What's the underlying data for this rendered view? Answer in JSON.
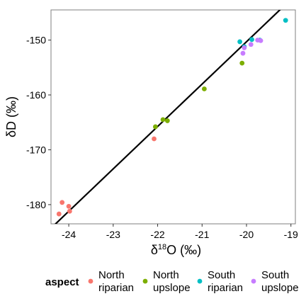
{
  "chart_data": {
    "type": "scatter",
    "xlabel_main": "δ",
    "xlabel_sup": "18",
    "xlabel_rest": "O (‰)",
    "ylabel": "δD (‰)",
    "xlim": [
      -24.4,
      -18.9
    ],
    "ylim": [
      -183.5,
      -144.5
    ],
    "xticks": [
      -24,
      -23,
      -22,
      -21,
      -20,
      -19
    ],
    "yticks": [
      -180,
      -170,
      -160,
      -150
    ],
    "fit_line": {
      "x": [
        -24.4,
        -18.9
      ],
      "y": [
        -184.3,
        -141.8
      ]
    },
    "legend_title": "aspect",
    "series": [
      {
        "name_line1": "North",
        "name_line2": "riparian",
        "color": "#F8766D",
        "points": [
          [
            -24.15,
            -179.6
          ],
          [
            -24.0,
            -180.3
          ],
          [
            -23.98,
            -181.2
          ],
          [
            -24.22,
            -181.7
          ],
          [
            -22.08,
            -168.0
          ]
        ]
      },
      {
        "name_line1": "North",
        "name_line2": "upslope",
        "color": "#7CAE00",
        "points": [
          [
            -22.05,
            -165.8
          ],
          [
            -21.88,
            -164.5
          ],
          [
            -21.78,
            -164.7
          ],
          [
            -20.95,
            -158.9
          ],
          [
            -20.1,
            -154.2
          ]
        ]
      },
      {
        "name_line1": "South",
        "name_line2": "riparian",
        "color": "#00BFC4",
        "points": [
          [
            -20.15,
            -150.3
          ],
          [
            -20.05,
            -151.2
          ],
          [
            -19.88,
            -149.9
          ],
          [
            -19.7,
            -150.0
          ],
          [
            -19.12,
            -146.4
          ]
        ]
      },
      {
        "name_line1": "South",
        "name_line2": "upslope",
        "color": "#C77CFF",
        "points": [
          [
            -20.08,
            -152.4
          ],
          [
            -19.9,
            -150.8
          ],
          [
            -19.75,
            -150.0
          ],
          [
            -19.68,
            -150.1
          ],
          [
            -20.05,
            -151.4
          ]
        ]
      }
    ]
  }
}
